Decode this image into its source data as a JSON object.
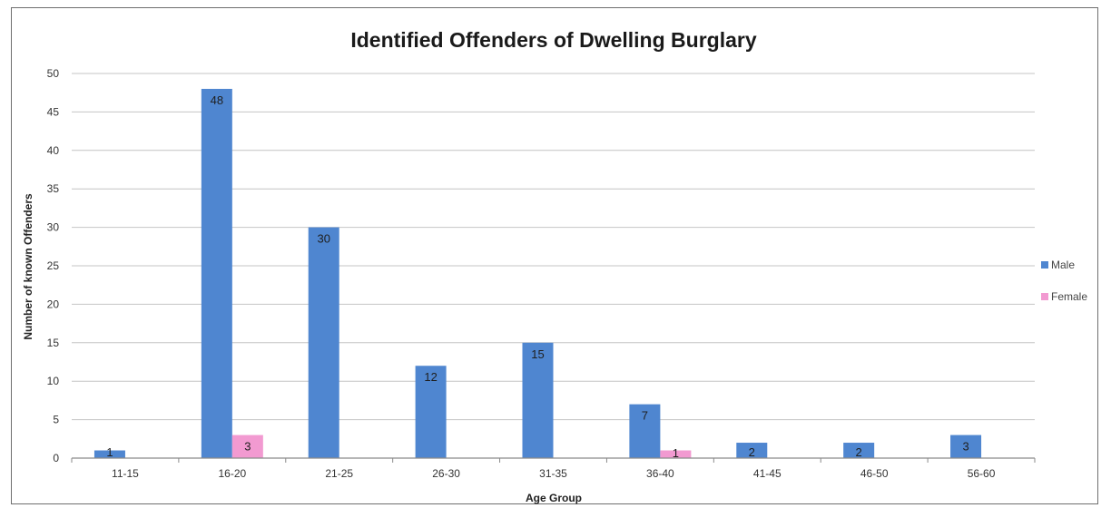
{
  "chart_data": {
    "type": "bar",
    "title": "Identified Offenders of Dwelling Burglary",
    "xlabel": "Age Group",
    "ylabel": "Number of known Offenders",
    "ylim": [
      0,
      50
    ],
    "yticks": [
      0,
      5,
      10,
      15,
      20,
      25,
      30,
      35,
      40,
      45,
      50
    ],
    "grid": true,
    "legend_position": "right",
    "categories": [
      "11-15",
      "16-20",
      "21-25",
      "26-30",
      "31-35",
      "36-40",
      "41-45",
      "46-50",
      "56-60"
    ],
    "series": [
      {
        "name": "Male",
        "color": "#4f86d0",
        "values": [
          1,
          48,
          30,
          12,
          15,
          7,
          2,
          2,
          3
        ]
      },
      {
        "name": "Female",
        "color": "#f29ad1",
        "values": [
          null,
          3,
          null,
          null,
          null,
          1,
          null,
          null,
          null
        ]
      }
    ]
  }
}
